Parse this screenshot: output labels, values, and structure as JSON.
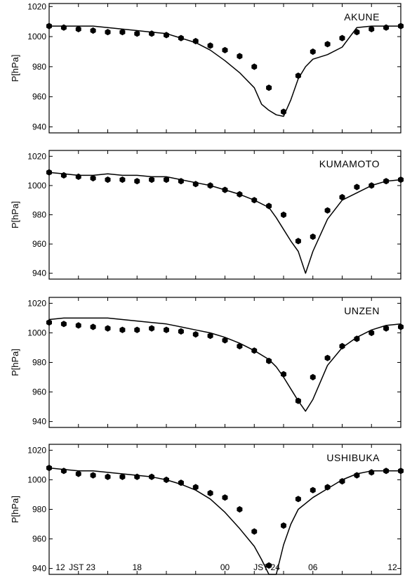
{
  "chart_data": [
    {
      "type": "line",
      "station": "AKUNE",
      "ylabel": "P[hPa]",
      "ylim": [
        936,
        1022
      ],
      "yticks": [
        940,
        960,
        980,
        1000,
        1020
      ],
      "xlim": [
        12,
        36
      ],
      "observed": {
        "x": [
          12,
          13,
          14,
          15,
          16,
          17,
          18,
          19,
          20,
          21,
          22,
          23,
          24,
          25,
          26,
          27,
          28,
          29,
          30,
          31,
          32,
          33,
          34,
          35,
          36
        ],
        "y": [
          1007,
          1006,
          1005,
          1004,
          1003,
          1003,
          1002,
          1002,
          1001,
          999,
          997,
          994,
          991,
          987,
          980,
          966,
          950,
          974,
          990,
          995,
          999,
          1003,
          1005,
          1006,
          1007
        ]
      },
      "model": {
        "x": [
          12,
          13,
          14,
          15,
          16,
          17,
          18,
          19,
          20,
          21,
          22,
          23,
          24,
          25,
          26,
          26.5,
          27,
          27.5,
          28,
          28.5,
          29,
          29.5,
          30,
          31,
          32,
          33,
          34,
          35,
          36
        ],
        "y": [
          1007,
          1007,
          1007,
          1007,
          1006,
          1005,
          1004,
          1003,
          1002,
          999,
          996,
          991,
          984,
          976,
          966,
          955,
          951,
          948,
          947,
          958,
          972,
          980,
          985,
          988,
          993,
          1006,
          1007,
          1007,
          1007
        ]
      }
    },
    {
      "type": "line",
      "station": "KUMAMOTO",
      "ylabel": "P[hPa]",
      "ylim": [
        936,
        1024
      ],
      "yticks": [
        940,
        960,
        980,
        1000,
        1020
      ],
      "xlim": [
        12,
        36
      ],
      "observed": {
        "x": [
          12,
          13,
          14,
          15,
          16,
          17,
          18,
          19,
          20,
          21,
          22,
          23,
          24,
          25,
          26,
          27,
          28,
          29,
          30,
          31,
          32,
          33,
          34,
          35,
          36
        ],
        "y": [
          1009,
          1007,
          1006,
          1005,
          1004,
          1004,
          1003,
          1004,
          1004,
          1003,
          1001,
          1000,
          997,
          994,
          990,
          986,
          980,
          962,
          965,
          983,
          992,
          999,
          1000,
          1003,
          1004
        ]
      },
      "model": {
        "x": [
          12,
          13,
          14,
          15,
          16,
          17,
          18,
          19,
          20,
          21,
          22,
          23,
          24,
          25,
          26,
          27,
          27.5,
          28,
          28.5,
          29,
          29.5,
          30,
          30.5,
          31,
          32,
          33,
          34,
          35,
          36
        ],
        "y": [
          1009,
          1008,
          1007,
          1007,
          1008,
          1007,
          1007,
          1006,
          1006,
          1004,
          1002,
          1000,
          997,
          994,
          990,
          985,
          978,
          970,
          962,
          955,
          940,
          955,
          966,
          977,
          990,
          995,
          1000,
          1003,
          1004
        ]
      }
    },
    {
      "type": "line",
      "station": "UNZEN",
      "ylabel": "P[hPa]",
      "ylim": [
        936,
        1024
      ],
      "yticks": [
        940,
        960,
        980,
        1000,
        1020
      ],
      "xlim": [
        12,
        36
      ],
      "observed": {
        "x": [
          12,
          13,
          14,
          15,
          16,
          17,
          18,
          19,
          20,
          21,
          22,
          23,
          24,
          25,
          26,
          27,
          28,
          29,
          30,
          31,
          32,
          33,
          34,
          35,
          36
        ],
        "y": [
          1007,
          1006,
          1005,
          1004,
          1003,
          1002,
          1002,
          1003,
          1002,
          1001,
          999,
          998,
          995,
          991,
          988,
          981,
          972,
          954,
          970,
          983,
          991,
          996,
          1000,
          1003,
          1004
        ]
      },
      "model": {
        "x": [
          12,
          13,
          14,
          15,
          16,
          17,
          18,
          19,
          20,
          21,
          22,
          23,
          24,
          25,
          26,
          27,
          27.5,
          28,
          28.5,
          29,
          29.5,
          30,
          31,
          32,
          33,
          34,
          35,
          36
        ],
        "y": [
          1009,
          1010,
          1010,
          1010,
          1010,
          1009,
          1008,
          1007,
          1006,
          1004,
          1002,
          1000,
          997,
          993,
          988,
          982,
          977,
          970,
          962,
          954,
          947,
          955,
          978,
          990,
          997,
          1002,
          1005,
          1006
        ]
      }
    },
    {
      "type": "line",
      "station": "USHIBUKA",
      "ylabel": "P[hPa]",
      "ylim": [
        936,
        1024
      ],
      "yticks": [
        940,
        960,
        980,
        1000,
        1020
      ],
      "xlim": [
        12,
        36
      ],
      "xticks": [
        {
          "x": 12,
          "label": "12"
        },
        {
          "x": 18,
          "label": "18"
        },
        {
          "x": 24,
          "label": "00"
        },
        {
          "x": 30,
          "label": "06"
        },
        {
          "x": 36,
          "label": "12"
        }
      ],
      "x_annotations": [
        {
          "x": 13.2,
          "label": "JST 23"
        },
        {
          "x": 25.8,
          "label": "JST 24"
        }
      ],
      "observed": {
        "x": [
          12,
          13,
          14,
          15,
          16,
          17,
          18,
          19,
          20,
          21,
          22,
          23,
          24,
          25,
          26,
          27,
          28,
          29,
          30,
          31,
          32,
          33,
          34,
          35,
          36
        ],
        "y": [
          1008,
          1006,
          1004,
          1003,
          1002,
          1002,
          1002,
          1002,
          1000,
          998,
          995,
          991,
          988,
          980,
          965,
          942,
          969,
          987,
          993,
          995,
          999,
          1003,
          1005,
          1006,
          1006
        ]
      },
      "model": {
        "x": [
          12,
          13,
          14,
          15,
          16,
          17,
          18,
          19,
          20,
          21,
          22,
          23,
          24,
          25,
          26,
          26.5,
          27,
          27.5,
          28,
          28.5,
          29,
          30,
          31,
          32,
          33,
          34,
          35,
          36
        ],
        "y": [
          1008,
          1007,
          1006,
          1006,
          1005,
          1004,
          1003,
          1002,
          1000,
          997,
          993,
          987,
          978,
          967,
          955,
          946,
          936,
          936,
          956,
          970,
          980,
          988,
          994,
          1000,
          1004,
          1006,
          1006,
          1006
        ]
      }
    }
  ]
}
